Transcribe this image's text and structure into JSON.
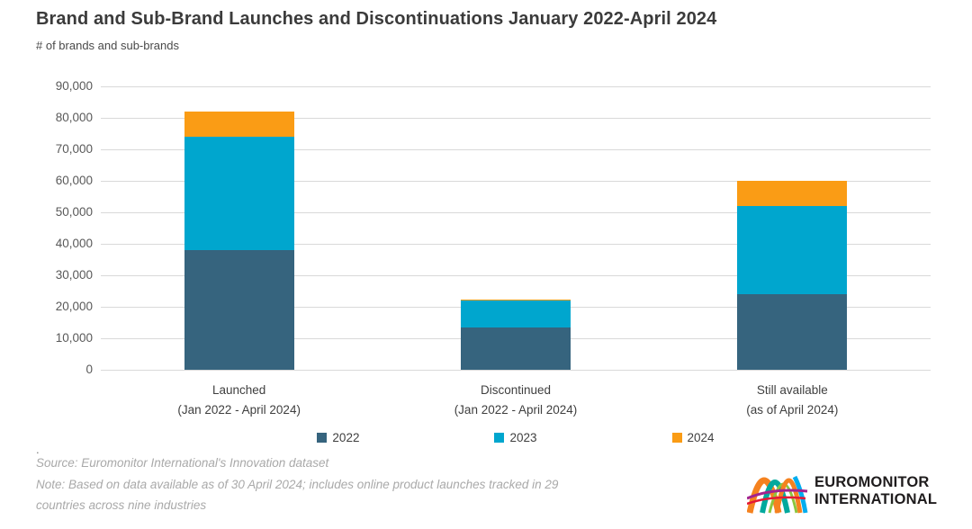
{
  "title": "Brand and Sub-Brand Launches and Discontinuations January 2022-April 2024",
  "subtitle": "# of brands and sub-brands",
  "chart_data": {
    "type": "bar",
    "stacked": true,
    "title": "Brand and Sub-Brand Launches and Discontinuations January 2022-April 2024",
    "ylabel": "# of brands and sub-brands",
    "ylim": [
      0,
      90000
    ],
    "ytick_step": 10000,
    "grid": true,
    "legend_position": "bottom",
    "categories": [
      {
        "label": "Launched",
        "sublabel": "(Jan 2022 - April 2024)"
      },
      {
        "label": "Discontinued",
        "sublabel": "(Jan 2022 - April 2024)"
      },
      {
        "label": "Still available",
        "sublabel": "(as of April 2024)"
      }
    ],
    "series": [
      {
        "name": "2022",
        "color": "#36647E",
        "values": [
          38000,
          13500,
          24000
        ]
      },
      {
        "name": "2023",
        "color": "#00A6CE",
        "values": [
          36000,
          8500,
          28000
        ]
      },
      {
        "name": "2024",
        "color": "#FA9C15",
        "values": [
          8000,
          400,
          8000
        ]
      }
    ]
  },
  "stray_dot": ".",
  "footnote": {
    "source": "Source: Euromonitor International's Innovation dataset",
    "note_line1": "Note: Based on data available as of 30 April 2024; includes online product launches tracked in 29",
    "note_line2": "countries across nine industries"
  },
  "logo": {
    "line1": "EUROMONITOR",
    "line2": "INTERNATIONAL"
  },
  "colors": {
    "gridline": "#D9D9D9",
    "title_text": "#3B3B3B",
    "axis_text": "#595959",
    "footnote_text": "#A9A9A9"
  }
}
